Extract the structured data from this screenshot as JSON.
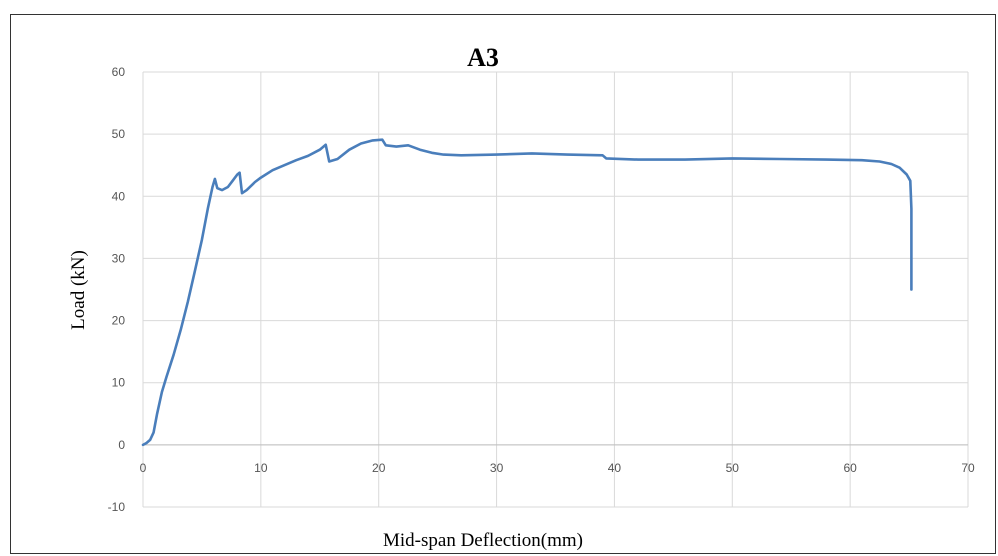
{
  "chart_data": {
    "type": "line",
    "title": "A3",
    "xlabel": "Mid-span Deflection(mm)",
    "ylabel": "Load (kN)",
    "xlim": [
      0,
      70
    ],
    "ylim": [
      -10,
      60
    ],
    "xticks": [
      0,
      10,
      20,
      30,
      40,
      50,
      60,
      70
    ],
    "yticks": [
      -10,
      0,
      10,
      20,
      30,
      40,
      50,
      60
    ],
    "grid": true,
    "legend": "none",
    "series": [
      {
        "color": "#4a7ebb",
        "points": [
          [
            0,
            0
          ],
          [
            0.3,
            0.3
          ],
          [
            0.6,
            0.8
          ],
          [
            0.9,
            2
          ],
          [
            1.2,
            5
          ],
          [
            1.6,
            8.5
          ],
          [
            2.0,
            11
          ],
          [
            2.6,
            14.5
          ],
          [
            3.2,
            18.5
          ],
          [
            3.8,
            23
          ],
          [
            4.4,
            28
          ],
          [
            5.0,
            33
          ],
          [
            5.5,
            38
          ],
          [
            5.9,
            41.5
          ],
          [
            6.1,
            42.8
          ],
          [
            6.3,
            41.3
          ],
          [
            6.7,
            41.0
          ],
          [
            7.2,
            41.5
          ],
          [
            7.6,
            42.5
          ],
          [
            8.0,
            43.5
          ],
          [
            8.2,
            43.8
          ],
          [
            8.4,
            40.5
          ],
          [
            8.8,
            41.0
          ],
          [
            9.5,
            42.3
          ],
          [
            10.0,
            43.0
          ],
          [
            11.0,
            44.2
          ],
          [
            12.0,
            45.0
          ],
          [
            13.0,
            45.8
          ],
          [
            14.0,
            46.5
          ],
          [
            15.0,
            47.5
          ],
          [
            15.5,
            48.3
          ],
          [
            15.8,
            45.6
          ],
          [
            16.5,
            46.0
          ],
          [
            17.5,
            47.5
          ],
          [
            18.5,
            48.5
          ],
          [
            19.5,
            49.0
          ],
          [
            20.3,
            49.1
          ],
          [
            20.6,
            48.2
          ],
          [
            21.5,
            48.0
          ],
          [
            22.5,
            48.2
          ],
          [
            23.5,
            47.5
          ],
          [
            24.5,
            47.0
          ],
          [
            25.5,
            46.7
          ],
          [
            27.0,
            46.6
          ],
          [
            30.0,
            46.7
          ],
          [
            33.0,
            46.9
          ],
          [
            36.0,
            46.7
          ],
          [
            39.0,
            46.6
          ],
          [
            39.3,
            46.1
          ],
          [
            42.0,
            45.9
          ],
          [
            46.0,
            45.9
          ],
          [
            50.0,
            46.1
          ],
          [
            54.0,
            46.0
          ],
          [
            58.0,
            45.9
          ],
          [
            61.0,
            45.8
          ],
          [
            62.5,
            45.6
          ],
          [
            63.5,
            45.2
          ],
          [
            64.2,
            44.6
          ],
          [
            64.8,
            43.5
          ],
          [
            65.1,
            42.5
          ],
          [
            65.2,
            38
          ],
          [
            65.2,
            30
          ],
          [
            65.2,
            25
          ]
        ]
      }
    ]
  }
}
